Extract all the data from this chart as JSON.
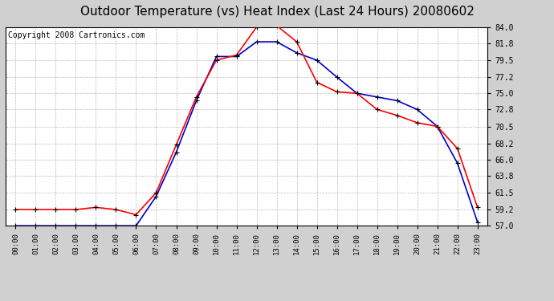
{
  "title": "Outdoor Temperature (vs) Heat Index (Last 24 Hours) 20080602",
  "copyright": "Copyright 2008 Cartronics.com",
  "hours": [
    "00:00",
    "01:00",
    "02:00",
    "03:00",
    "04:00",
    "05:00",
    "06:00",
    "07:00",
    "08:00",
    "09:00",
    "10:00",
    "11:00",
    "12:00",
    "13:00",
    "14:00",
    "15:00",
    "16:00",
    "17:00",
    "18:00",
    "19:00",
    "20:00",
    "21:00",
    "22:00",
    "23:00"
  ],
  "temp": [
    59.2,
    59.2,
    59.2,
    59.2,
    59.5,
    59.2,
    58.5,
    61.5,
    68.0,
    74.5,
    79.5,
    80.2,
    84.0,
    84.2,
    82.0,
    76.5,
    75.2,
    75.0,
    72.8,
    72.0,
    71.0,
    70.5,
    67.5,
    59.5
  ],
  "heat_index": [
    57.0,
    57.0,
    57.0,
    57.0,
    57.0,
    57.0,
    57.0,
    61.0,
    67.0,
    74.0,
    80.0,
    80.0,
    82.0,
    82.0,
    80.5,
    79.5,
    77.2,
    75.0,
    74.5,
    74.0,
    72.8,
    70.5,
    65.5,
    57.5
  ],
  "temp_color": "#ff0000",
  "heat_index_color": "#0000cc",
  "fig_bg_color": "#d0d0d0",
  "plot_bg": "#ffffff",
  "ylim_min": 57.0,
  "ylim_max": 84.0,
  "yticks": [
    57.0,
    59.2,
    61.5,
    63.8,
    66.0,
    68.2,
    70.5,
    72.8,
    75.0,
    77.2,
    79.5,
    81.8,
    84.0
  ],
  "grid_color": "#aaaaaa",
  "title_fontsize": 11,
  "marker": "+",
  "marker_size": 5,
  "line_width": 1.2,
  "copyright_fontsize": 7
}
